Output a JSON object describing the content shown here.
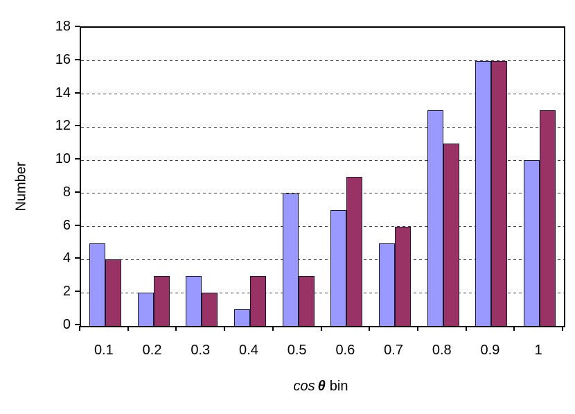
{
  "chart_data": {
    "type": "bar",
    "title": "",
    "categories": [
      "0.1",
      "0.2",
      "0.3",
      "0.4",
      "0.5",
      "0.6",
      "0.7",
      "0.8",
      "0.9",
      "1"
    ],
    "series": [
      {
        "name": "blue",
        "color": "#9999FF",
        "values": [
          5,
          2,
          3,
          1,
          8,
          7,
          5,
          13,
          16,
          10
        ]
      },
      {
        "name": "maroon",
        "color": "#993366",
        "values": [
          4,
          3,
          2,
          3,
          3,
          9,
          6,
          11,
          16,
          13
        ]
      }
    ],
    "xlabel": "cos θ bin",
    "ylabel": "Number",
    "ylim": [
      0,
      18
    ],
    "ytick_step": 2,
    "grid": "horizontal-dashed",
    "legend": "none"
  },
  "axis": {
    "ylabel": "Number",
    "xlabel_cos": "cos",
    "xlabel_theta": "θ",
    "xlabel_bin": "bin"
  }
}
